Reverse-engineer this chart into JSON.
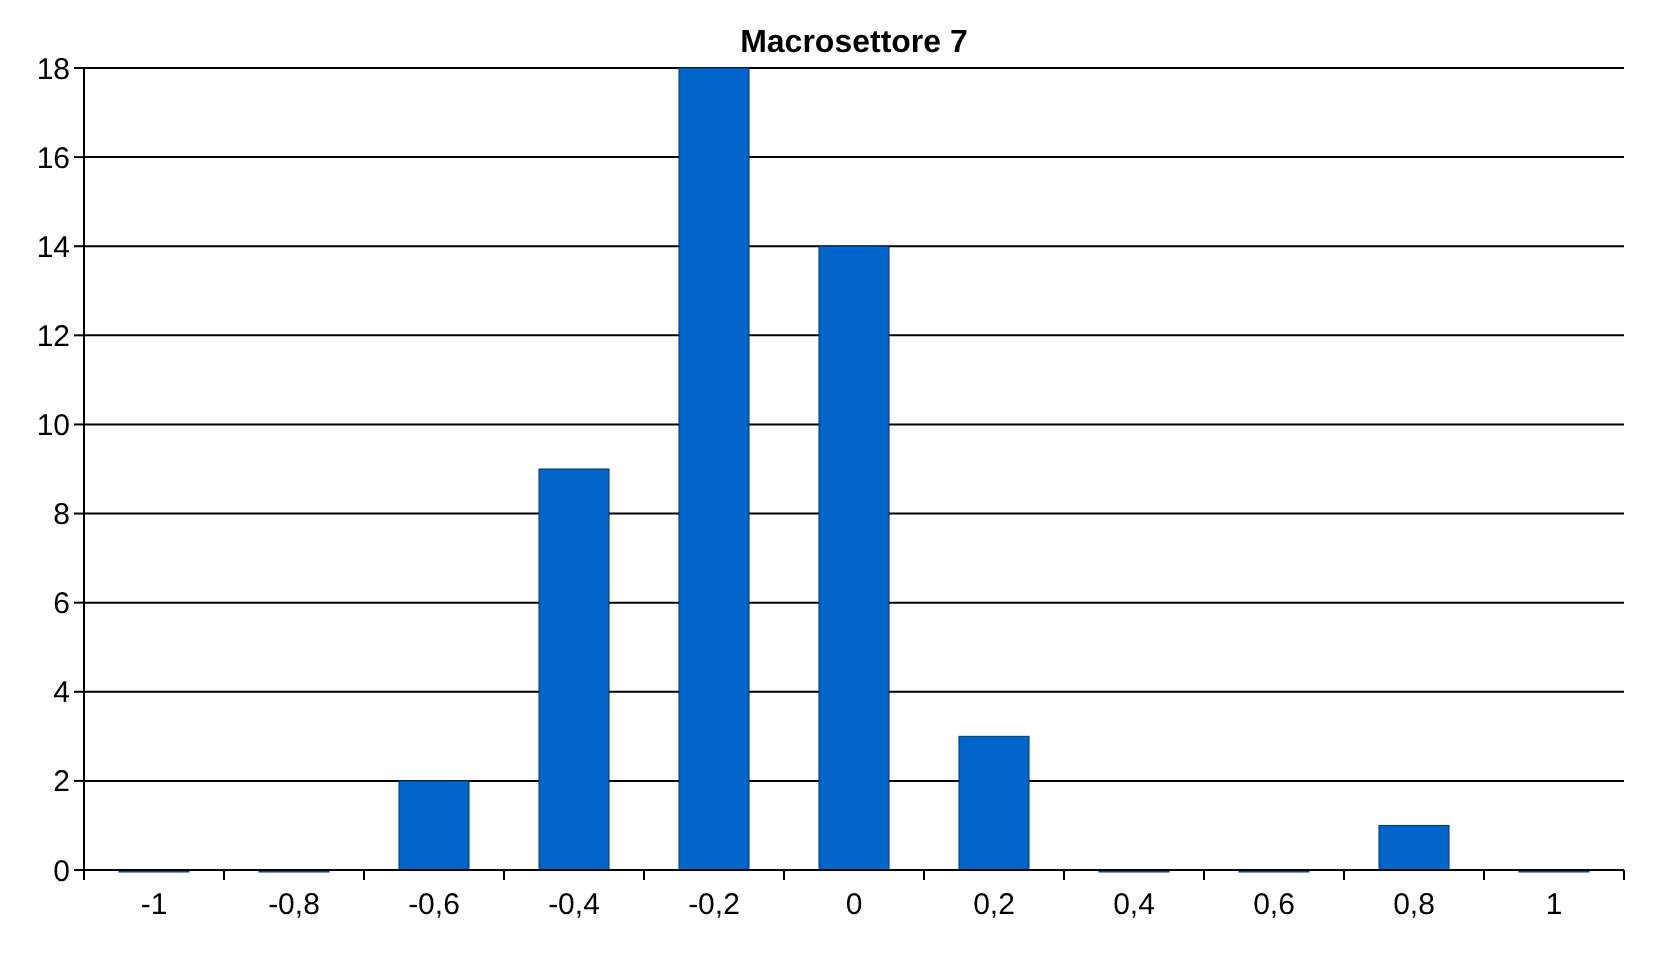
{
  "chart_data": {
    "type": "bar",
    "title": "Macrosettore 7",
    "categories": [
      "-1",
      "-0,8",
      "-0,6",
      "-0,4",
      "-0,2",
      "0",
      "0,2",
      "0,4",
      "0,6",
      "0,8",
      "1"
    ],
    "values": [
      0,
      0,
      2,
      9,
      18,
      14,
      3,
      0,
      0,
      1,
      0
    ],
    "color": "#0066cc",
    "ylim": [
      0,
      18
    ],
    "yticks": [
      0,
      2,
      4,
      6,
      8,
      10,
      12,
      14,
      16,
      18
    ],
    "grid": "y"
  }
}
